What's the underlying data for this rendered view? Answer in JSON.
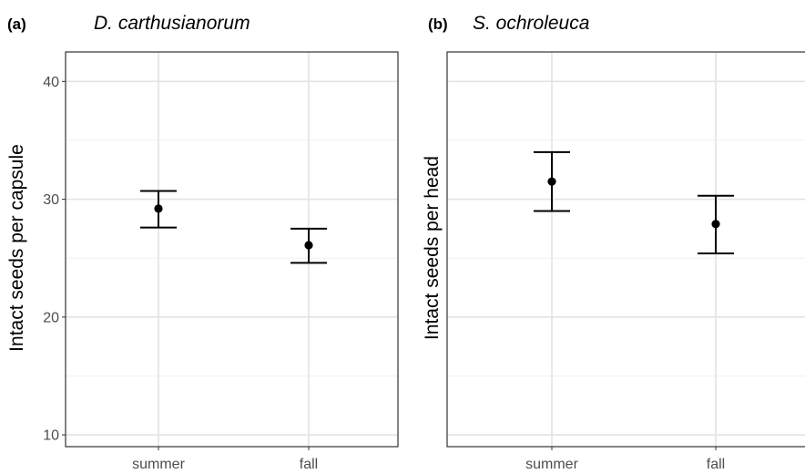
{
  "chart_data": [
    {
      "type": "scatter",
      "panel_tag": "(a)",
      "title": "D. carthusianorum",
      "ylabel": "Intact seeds per capsule",
      "categories": [
        "summer",
        "fall"
      ],
      "ylim": [
        9,
        42.5
      ],
      "yticks": [
        "10",
        "20",
        "30",
        "40"
      ],
      "grid": true,
      "points": [
        {
          "x": "summer",
          "y": 29.2,
          "lower": 27.6,
          "upper": 30.7
        },
        {
          "x": "fall",
          "y": 26.1,
          "lower": 24.6,
          "upper": 27.5
        }
      ]
    },
    {
      "type": "scatter",
      "panel_tag": "(b)",
      "title": "S. ochroleuca",
      "ylabel": "Intact seeds per head",
      "categories": [
        "summer",
        "fall"
      ],
      "ylim": [
        9,
        42.5
      ],
      "yticks": [],
      "grid": true,
      "points": [
        {
          "x": "summer",
          "y": 31.5,
          "lower": 29.0,
          "upper": 34.0
        },
        {
          "x": "fall",
          "y": 27.9,
          "lower": 25.4,
          "upper": 30.3
        }
      ]
    }
  ]
}
